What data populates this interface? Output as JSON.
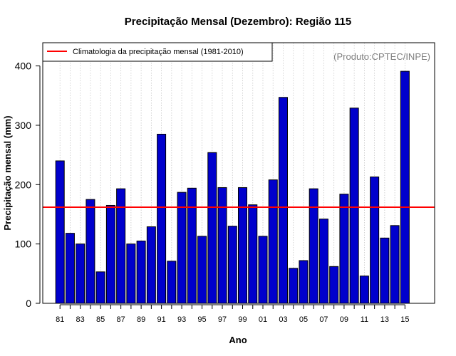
{
  "chart_data": {
    "type": "bar",
    "title": "Precipitação Mensal (Dezembro): Região 115",
    "xlabel": "Ano",
    "ylabel": "Precipitação mensal (mm)",
    "ylim": [
      0,
      440
    ],
    "yticks": [
      0,
      100,
      200,
      300,
      400
    ],
    "yticks_text": [
      "0",
      "100",
      "200",
      "300",
      "400"
    ],
    "grid": "vertical dotted lines at each year",
    "credit": "(Produto:CPTEC/INPE)",
    "bar_color": "#0000cc",
    "bar_edge_color": "#000000",
    "categories": [
      "81",
      "82",
      "83",
      "84",
      "85",
      "86",
      "87",
      "88",
      "89",
      "90",
      "91",
      "92",
      "93",
      "94",
      "95",
      "96",
      "97",
      "98",
      "99",
      "00",
      "01",
      "02",
      "03",
      "04",
      "05",
      "06",
      "07",
      "08",
      "09",
      "10",
      "11",
      "12",
      "13",
      "14",
      "15"
    ],
    "xtick_labels": [
      "81",
      "83",
      "85",
      "87",
      "89",
      "91",
      "93",
      "95",
      "97",
      "99",
      "01",
      "03",
      "05",
      "07",
      "09",
      "11",
      "13",
      "15"
    ],
    "series": [
      {
        "name": "Precipitação mensal",
        "values": [
          240,
          118,
          100,
          175,
          53,
          165,
          193,
          100,
          105,
          129,
          285,
          71,
          187,
          194,
          113,
          254,
          195,
          130,
          195,
          166,
          113,
          208,
          347,
          59,
          72,
          193,
          142,
          62,
          184,
          329,
          46,
          213,
          110,
          131,
          391
        ]
      }
    ],
    "reference_line": {
      "label": "Climatologia da precipitação mensal (1981-2010)",
      "value": 162,
      "color": "#ff0000"
    },
    "legend_position": "top-left"
  }
}
